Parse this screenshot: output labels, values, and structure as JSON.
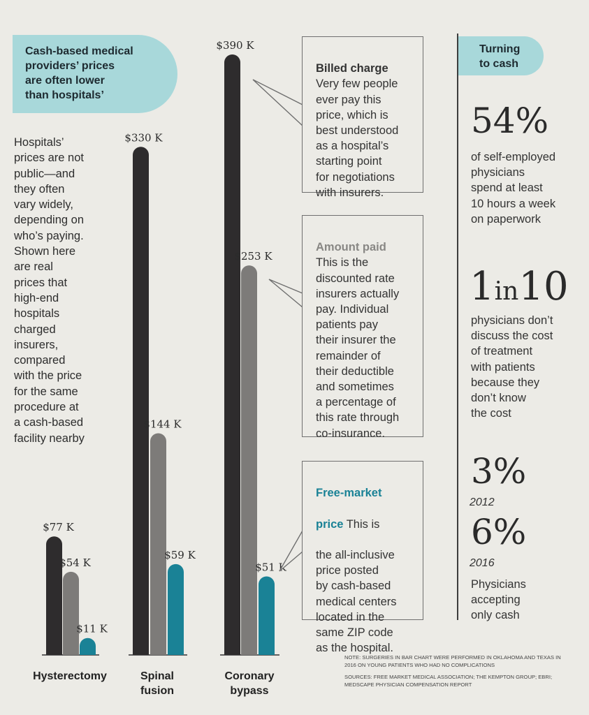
{
  "header": {
    "title": "Cash-based medical\nproviders’ prices\nare often lower\nthan hospitals’"
  },
  "intro": "Hospitals’\nprices are not\npublic—and\nthey often\nvary widely,\ndepending on\nwho’s paying.\nShown here\nare real\nprices that\nhigh-end\nhospitals\ncharged\ninsurers,\ncompared\nwith the price\nfor the same\nprocedure at\na cash-based\nfacility nearby",
  "chart_data": {
    "type": "bar",
    "categories": [
      "Hysterectomy",
      "Spinal\nfusion",
      "Coronary\nbypass"
    ],
    "series": [
      {
        "name": "Billed charge",
        "values": [
          77,
          330,
          390
        ],
        "labels": [
          "$77 K",
          "$330 K",
          "$390 K"
        ]
      },
      {
        "name": "Amount paid",
        "values": [
          54,
          144,
          253
        ],
        "labels": [
          "$54 K",
          "$144 K",
          "$253 K"
        ]
      },
      {
        "name": "Free-market price",
        "values": [
          11,
          59,
          51
        ],
        "labels": [
          "$11 K",
          "$59 K",
          "$51 K"
        ]
      }
    ],
    "unit": "thousand dollars",
    "ylim": [
      0,
      390
    ],
    "colors": [
      "#2e2c2d",
      "#7d7b79",
      "#1a8296"
    ]
  },
  "callouts": {
    "billed": {
      "head": "Billed charge",
      "body": "Very few people\never pay this\nprice, which is\nbest understood\nas a hospital’s\nstarting point\nfor negotiations\nwith insurers."
    },
    "paid": {
      "head": "Amount paid",
      "body": "This is the\ndiscounted rate\ninsurers actually\npay. Individual\npatients pay\ntheir insurer the\nremainder of\ntheir deductible\nand sometimes\na percentage of\nthis rate through\nco-insurance."
    },
    "free": {
      "head_line1": "Free-market",
      "head_line2": "price",
      "body_line2": " This is",
      "body": "the all-inclusive\nprice posted\nby cash-based\nmedical centers\nlocated in the\nsame ZIP code\nas the hospital."
    }
  },
  "sidebar": {
    "title": "Turning\nto cash",
    "stat1": {
      "value": "54%",
      "text": "of self-employed\nphysicians\nspend at least\n10 hours a week\non paperwork"
    },
    "stat2": {
      "value_a": "1",
      "value_b": "in",
      "value_c": "10",
      "text": "physicians don’t\ndiscuss the cost\nof treatment\nwith patients\nbecause they\ndon’t know\nthe cost"
    },
    "stat3": {
      "value_2012": "3%",
      "year_2012": "2012",
      "value_2016": "6%",
      "year_2016": "2016",
      "text": "Physicians\naccepting\nonly cash"
    }
  },
  "footer": {
    "note": "Note: Surgeries in bar chart were performed in Oklahoma and Texas in 2016 on young patients who had no complications",
    "sources": "Sources: Free Market Medical Association; The Kempton Group; EBRI; Medscape Physician Compensation Report"
  },
  "colors": {
    "accent_teal": "#a8d8da",
    "free_market_teal": "#1a8296",
    "paid_gray": "#888784"
  }
}
